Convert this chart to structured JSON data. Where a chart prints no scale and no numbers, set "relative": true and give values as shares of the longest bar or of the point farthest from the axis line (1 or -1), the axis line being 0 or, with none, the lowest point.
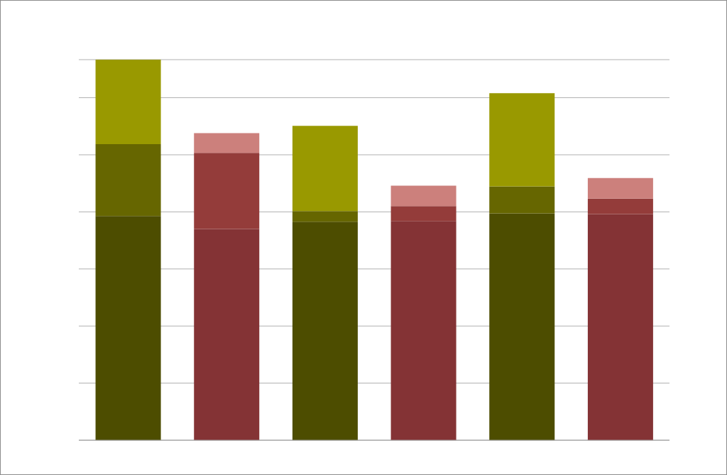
{
  "chart_data": {
    "type": "bar",
    "relative": true,
    "stacked": true,
    "grid": "y",
    "legend": false,
    "categories": [
      null,
      null,
      null,
      null,
      null,
      null
    ],
    "series": [
      {
        "colors": [
          "#4d4d00",
          "#843335",
          "#4d4d00",
          "#843335",
          "#4d4d00",
          "#843335"
        ],
        "values": [
          0.589,
          0.555,
          0.574,
          0.576,
          0.596,
          0.594
        ]
      },
      {
        "colors": [
          "#666600",
          "#943c3a",
          "#666600",
          "#943c3a",
          "#666600",
          "#943c3a"
        ],
        "values": [
          0.189,
          0.2,
          0.028,
          0.039,
          0.071,
          0.041
        ]
      },
      {
        "colors": [
          "#999900",
          "#cc807c",
          "#999900",
          "#cc807c",
          "#999900",
          "#cc807c"
        ],
        "values": [
          0.222,
          0.052,
          0.224,
          0.054,
          0.245,
          0.054
        ]
      }
    ]
  }
}
